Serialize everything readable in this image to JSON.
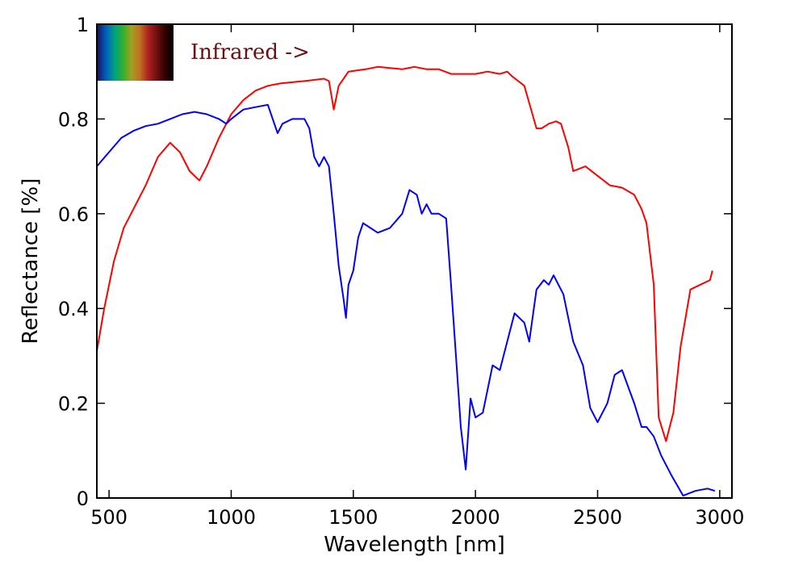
{
  "chart_data": {
    "type": "line",
    "xlabel": "Wavelength [nm]",
    "ylabel": "Reflectance [%]",
    "xlim": [
      450,
      3050
    ],
    "ylim": [
      0,
      1
    ],
    "xticks": [
      500,
      1000,
      1500,
      2000,
      2500,
      3000
    ],
    "xtick_labels": [
      "500",
      "1000",
      "1500",
      "2000",
      "2500",
      "3000"
    ],
    "yticks": [
      0,
      0.2,
      0.4,
      0.6,
      0.8,
      1
    ],
    "ytick_labels": [
      "0",
      "0.2",
      "0.4",
      "0.6",
      "0.8",
      "1"
    ],
    "grid": false,
    "annotation": {
      "text": "Infrared ->",
      "color": "#6b1010"
    },
    "spectrum_colors": [
      "#1b1464",
      "#0060c0",
      "#00a080",
      "#30b030",
      "#a0a020",
      "#c07020",
      "#b02020",
      "#701010",
      "#300000",
      "#000000"
    ],
    "series": [
      {
        "color": "#ff0000",
        "x": [
          450,
          480,
          520,
          560,
          600,
          650,
          700,
          750,
          790,
          830,
          870,
          900,
          950,
          1000,
          1050,
          1100,
          1150,
          1200,
          1300,
          1380,
          1400,
          1420,
          1440,
          1480,
          1550,
          1600,
          1700,
          1750,
          1800,
          1850,
          1900,
          2000,
          2050,
          2100,
          2130,
          2150,
          2200,
          2250,
          2270,
          2300,
          2330,
          2350,
          2380,
          2400,
          2450,
          2500,
          2550,
          2600,
          2650,
          2680,
          2700,
          2730,
          2750,
          2780,
          2810,
          2840,
          2880,
          2920,
          2960,
          2970
        ],
        "values": [
          0.31,
          0.4,
          0.5,
          0.57,
          0.61,
          0.66,
          0.72,
          0.75,
          0.73,
          0.69,
          0.67,
          0.7,
          0.76,
          0.81,
          0.84,
          0.86,
          0.87,
          0.875,
          0.88,
          0.885,
          0.88,
          0.82,
          0.87,
          0.9,
          0.905,
          0.91,
          0.905,
          0.91,
          0.905,
          0.905,
          0.895,
          0.895,
          0.9,
          0.895,
          0.9,
          0.89,
          0.87,
          0.78,
          0.78,
          0.79,
          0.795,
          0.79,
          0.74,
          0.69,
          0.7,
          0.68,
          0.66,
          0.655,
          0.64,
          0.61,
          0.58,
          0.45,
          0.17,
          0.12,
          0.18,
          0.32,
          0.44,
          0.45,
          0.46,
          0.48
        ]
      },
      {
        "color": "#0000ff",
        "x": [
          450,
          500,
          550,
          600,
          650,
          700,
          750,
          800,
          850,
          900,
          950,
          980,
          1000,
          1050,
          1100,
          1150,
          1170,
          1190,
          1210,
          1250,
          1300,
          1320,
          1340,
          1360,
          1380,
          1400,
          1420,
          1440,
          1460,
          1470,
          1480,
          1500,
          1520,
          1540,
          1570,
          1600,
          1650,
          1700,
          1730,
          1760,
          1780,
          1800,
          1820,
          1850,
          1880,
          1900,
          1920,
          1940,
          1960,
          1980,
          2000,
          2030,
          2070,
          2100,
          2130,
          2160,
          2200,
          2220,
          2250,
          2280,
          2300,
          2320,
          2360,
          2400,
          2440,
          2470,
          2500,
          2540,
          2570,
          2600,
          2650,
          2680,
          2700,
          2730,
          2760,
          2800,
          2850,
          2900,
          2950,
          2980
        ],
        "values": [
          0.7,
          0.73,
          0.76,
          0.775,
          0.785,
          0.79,
          0.8,
          0.81,
          0.815,
          0.81,
          0.8,
          0.79,
          0.8,
          0.82,
          0.825,
          0.83,
          0.8,
          0.77,
          0.79,
          0.8,
          0.8,
          0.78,
          0.72,
          0.7,
          0.72,
          0.7,
          0.6,
          0.49,
          0.42,
          0.38,
          0.45,
          0.48,
          0.55,
          0.58,
          0.57,
          0.56,
          0.57,
          0.6,
          0.65,
          0.64,
          0.6,
          0.62,
          0.6,
          0.6,
          0.59,
          0.45,
          0.3,
          0.15,
          0.06,
          0.21,
          0.17,
          0.18,
          0.28,
          0.27,
          0.33,
          0.39,
          0.37,
          0.33,
          0.44,
          0.46,
          0.45,
          0.47,
          0.43,
          0.33,
          0.28,
          0.19,
          0.16,
          0.2,
          0.26,
          0.27,
          0.2,
          0.15,
          0.15,
          0.13,
          0.09,
          0.05,
          0.005,
          0.015,
          0.02,
          0.015
        ]
      }
    ]
  }
}
